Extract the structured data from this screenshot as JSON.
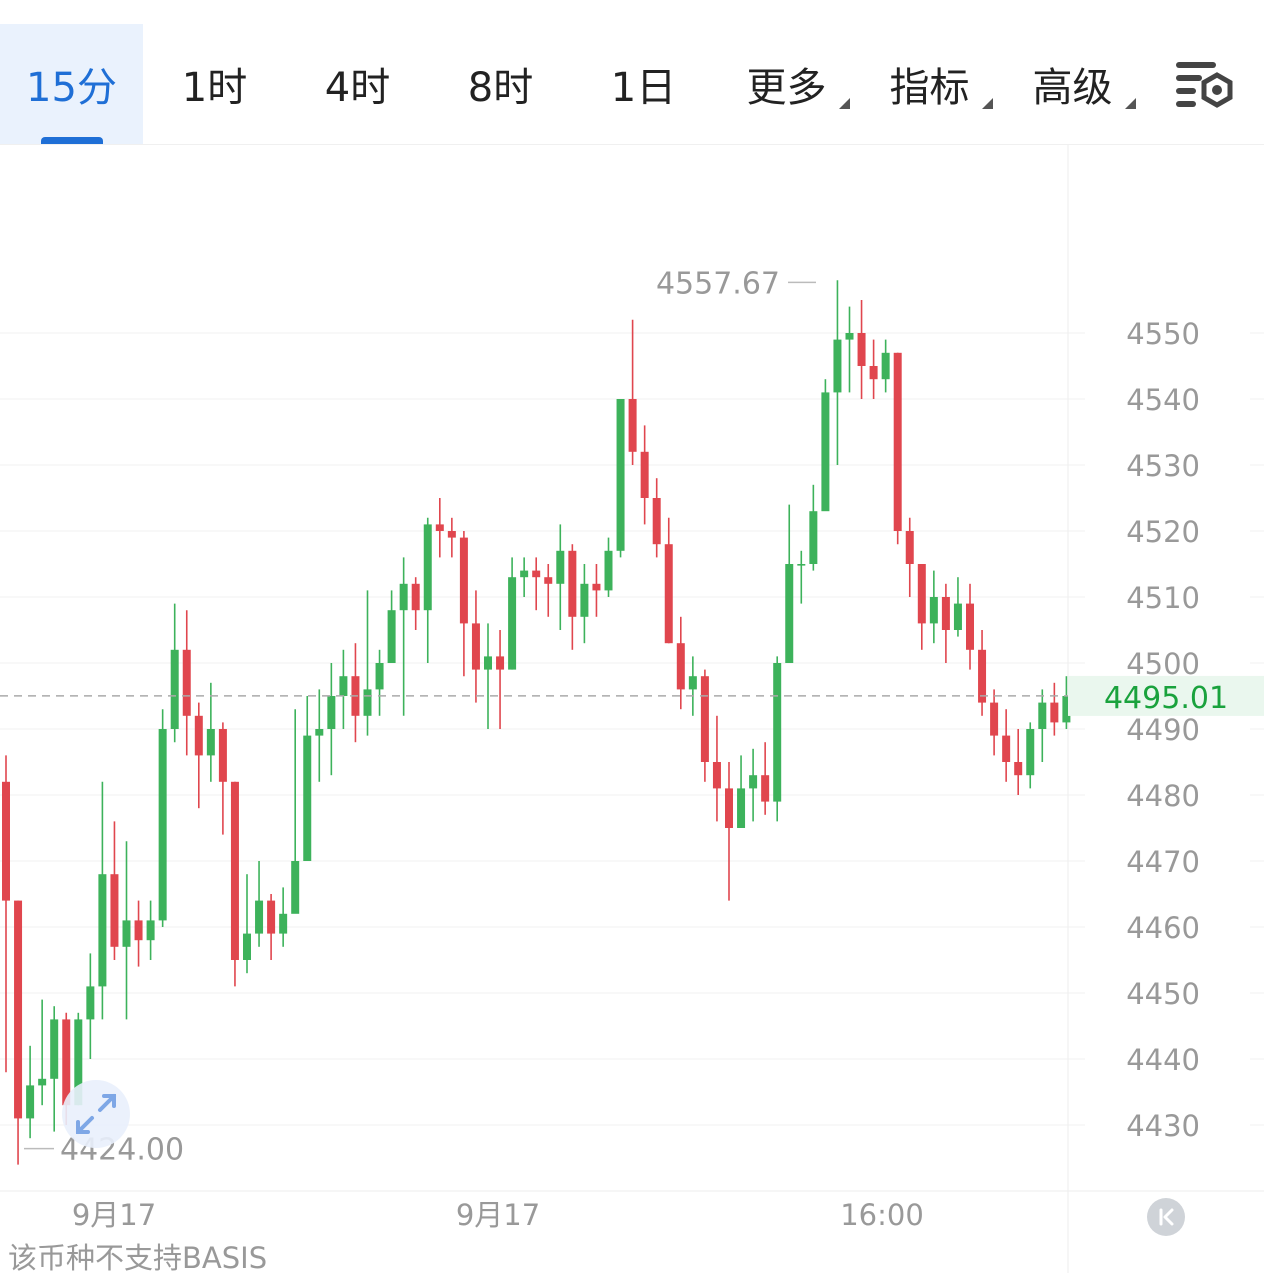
{
  "tabs": [
    {
      "label": "15分",
      "active": true
    },
    {
      "label": "1时"
    },
    {
      "label": "4时"
    },
    {
      "label": "8时"
    },
    {
      "label": "1日"
    },
    {
      "label": "更多",
      "dropdown": true
    },
    {
      "label": "指标",
      "dropdown": true
    },
    {
      "label": "高级",
      "dropdown": true
    }
  ],
  "settings_icon": "chart-settings-icon",
  "colors": {
    "up": "#3db25b",
    "down": "#e0464e",
    "accent": "#1f6fd6",
    "last_price": "#1aa23d"
  },
  "chart_data": {
    "type": "candlestick",
    "y_axis_ticks": [
      "4550",
      "4540",
      "4530",
      "4520",
      "4510",
      "4500",
      "4490",
      "4480",
      "4470",
      "4460",
      "4450",
      "4440",
      "4430"
    ],
    "x_axis_labels": [
      "9月17",
      "9月17",
      "16:00"
    ],
    "high_label": "4557.67",
    "low_label": "4424.00",
    "last_price_label": "4495.01",
    "high": 4557.67,
    "low": 4424.0,
    "last_price": 4495.01,
    "candles": [
      [
        4482,
        4464,
        4486,
        4438
      ],
      [
        4464,
        4431,
        4464,
        4424
      ],
      [
        4431,
        4436,
        4442,
        4428
      ],
      [
        4436,
        4437,
        4449,
        4433
      ],
      [
        4437,
        4446,
        4448,
        4429
      ],
      [
        4446,
        4433,
        4447,
        4430
      ],
      [
        4433,
        4446,
        4447,
        4433
      ],
      [
        4446,
        4451,
        4456,
        4440
      ],
      [
        4451,
        4468,
        4482,
        4446
      ],
      [
        4468,
        4457,
        4476,
        4455
      ],
      [
        4457,
        4461,
        4473,
        4446
      ],
      [
        4461,
        4458,
        4464,
        4454
      ],
      [
        4458,
        4461,
        4464,
        4455
      ],
      [
        4461,
        4490,
        4493,
        4460
      ],
      [
        4490,
        4502,
        4509,
        4488
      ],
      [
        4502,
        4492,
        4508,
        4486
      ],
      [
        4492,
        4486,
        4494,
        4478
      ],
      [
        4486,
        4490,
        4497,
        4482
      ],
      [
        4490,
        4482,
        4491,
        4474
      ],
      [
        4482,
        4455,
        4482,
        4451
      ],
      [
        4455,
        4459,
        4468,
        4453
      ],
      [
        4459,
        4464,
        4470,
        4457
      ],
      [
        4464,
        4459,
        4465,
        4455
      ],
      [
        4459,
        4462,
        4466,
        4457
      ],
      [
        4462,
        4470,
        4493,
        4467
      ],
      [
        4470,
        4489,
        4495,
        4479
      ],
      [
        4489,
        4490,
        4496,
        4482
      ],
      [
        4490,
        4495,
        4500,
        4483
      ],
      [
        4495,
        4498,
        4502,
        4490
      ],
      [
        4498,
        4492,
        4503,
        4488
      ],
      [
        4492,
        4496,
        4511,
        4489
      ],
      [
        4496,
        4500,
        4502,
        4492
      ],
      [
        4500,
        4508,
        4511,
        4501
      ],
      [
        4508,
        4512,
        4516,
        4492
      ],
      [
        4512,
        4508,
        4513,
        4505
      ],
      [
        4508,
        4521,
        4522,
        4500
      ],
      [
        4521,
        4520,
        4525,
        4516
      ],
      [
        4520,
        4519,
        4522,
        4516
      ],
      [
        4519,
        4506,
        4520,
        4498
      ],
      [
        4506,
        4499,
        4511,
        4494
      ],
      [
        4499,
        4501,
        4506,
        4490
      ],
      [
        4501,
        4499,
        4505,
        4490
      ],
      [
        4499,
        4513,
        4516,
        4499
      ],
      [
        4513,
        4514,
        4516,
        4510
      ],
      [
        4514,
        4513,
        4516,
        4508
      ],
      [
        4513,
        4512,
        4515,
        4507
      ],
      [
        4512,
        4517,
        4521,
        4505
      ],
      [
        4517,
        4507,
        4518,
        4502
      ],
      [
        4507,
        4512,
        4515,
        4503
      ],
      [
        4512,
        4511,
        4515,
        4507
      ],
      [
        4511,
        4517,
        4519,
        4510
      ],
      [
        4517,
        4540,
        4540,
        4516
      ],
      [
        4540,
        4532,
        4552,
        4530
      ],
      [
        4532,
        4525,
        4536,
        4521
      ],
      [
        4525,
        4518,
        4528,
        4516
      ],
      [
        4518,
        4503,
        4522,
        4503
      ],
      [
        4503,
        4496,
        4507,
        4493
      ],
      [
        4496,
        4498,
        4501,
        4492
      ],
      [
        4498,
        4485,
        4499,
        4482
      ],
      [
        4485,
        4481,
        4492,
        4476
      ],
      [
        4481,
        4475,
        4485,
        4464
      ],
      [
        4475,
        4481,
        4486,
        4476
      ],
      [
        4481,
        4483,
        4487,
        4476
      ],
      [
        4483,
        4479,
        4488,
        4477
      ],
      [
        4479,
        4500,
        4501,
        4476
      ],
      [
        4500,
        4515,
        4524,
        4507
      ],
      [
        4515,
        4515,
        4517,
        4509
      ],
      [
        4515,
        4523,
        4527,
        4514
      ],
      [
        4523,
        4541,
        4543,
        4528
      ],
      [
        4541,
        4549,
        4558,
        4530
      ],
      [
        4549,
        4550,
        4554,
        4541
      ],
      [
        4550,
        4545,
        4555,
        4540
      ],
      [
        4545,
        4543,
        4549,
        4540
      ],
      [
        4543,
        4547,
        4549,
        4541
      ],
      [
        4547,
        4520,
        4547,
        4518
      ],
      [
        4520,
        4515,
        4522,
        4510
      ],
      [
        4515,
        4506,
        4512,
        4502
      ],
      [
        4506,
        4510,
        4514,
        4503
      ],
      [
        4510,
        4505,
        4512,
        4500
      ],
      [
        4505,
        4509,
        4513,
        4504
      ],
      [
        4509,
        4502,
        4512,
        4499
      ],
      [
        4502,
        4494,
        4505,
        4492
      ],
      [
        4494,
        4489,
        4496,
        4486
      ],
      [
        4489,
        4485,
        4493,
        4482
      ],
      [
        4485,
        4483,
        4490,
        4480
      ],
      [
        4483,
        4490,
        4491,
        4481
      ],
      [
        4490,
        4494,
        4496,
        4485
      ],
      [
        4494,
        4491,
        4497,
        4489
      ],
      [
        4491,
        4495,
        4498,
        4490
      ]
    ]
  },
  "footer": {
    "note": "该币种不支持BASIS"
  },
  "icons": {
    "expand": "expand-icon",
    "scroll_back": "scroll-to-latest-icon"
  }
}
